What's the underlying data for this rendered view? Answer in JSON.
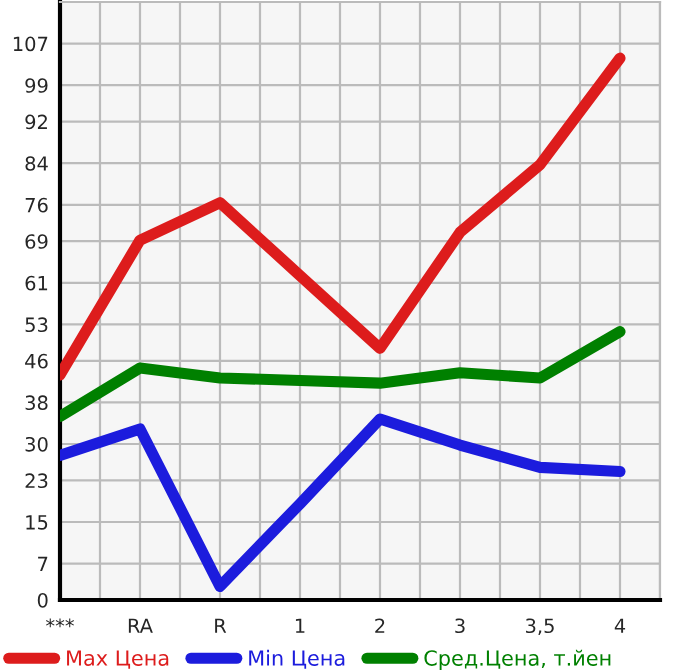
{
  "chart_data": {
    "type": "line",
    "categories": [
      "***",
      "RA",
      "R",
      "1",
      "2",
      "3",
      "3,5",
      "4"
    ],
    "series": [
      {
        "name": "Max Цена",
        "color": "#dd1c1c",
        "values": [
          43.3,
          69.2,
          76.4,
          62.4,
          48.4,
          70.7,
          83.7,
          104.2
        ]
      },
      {
        "name": "Min Цена",
        "color": "#1c1cdd",
        "values": [
          27.8,
          32.9,
          2.6,
          18.5,
          34.8,
          29.8,
          25.5,
          24.7
        ]
      },
      {
        "name": "Сред.Цена, т.йен",
        "color": "#008000",
        "values": [
          35.3,
          44.6,
          42.7,
          42.2,
          41.7,
          43.7,
          42.7,
          51.6
        ]
      }
    ],
    "ylim": [
      0,
      115
    ],
    "yticks": [
      0,
      7,
      15,
      23,
      30,
      38,
      46,
      53,
      61,
      69,
      76,
      84,
      92,
      99,
      107
    ],
    "grid": true,
    "legend": "bottom",
    "marker": "none",
    "line_style": "solid"
  }
}
